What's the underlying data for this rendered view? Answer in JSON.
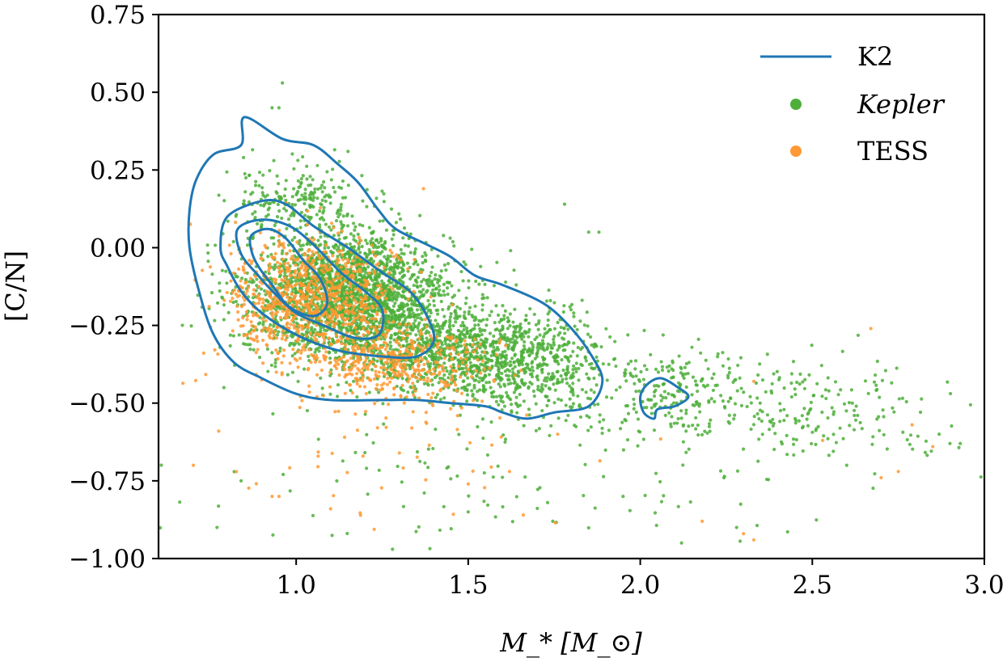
{
  "chart_data": {
    "type": "scatter",
    "xlabel": "M_* [M_⊙]",
    "ylabel": "[C/N]",
    "xlim": [
      0.6,
      3.0
    ],
    "ylim": [
      -1.0,
      0.75
    ],
    "x_ticks": [
      1.0,
      1.5,
      2.0,
      2.5,
      3.0
    ],
    "x_tick_labels": [
      "1.0",
      "1.5",
      "2.0",
      "2.5",
      "3.0"
    ],
    "y_ticks": [
      0.75,
      0.5,
      0.25,
      0.0,
      -0.25,
      -0.5,
      -0.75,
      -1.0
    ],
    "y_tick_labels": [
      "0.75",
      "0.50",
      "0.25",
      "0.00",
      "−0.25",
      "−0.50",
      "−0.75",
      "−1.00"
    ],
    "grid": false,
    "legend_position": "top-right",
    "series": [
      {
        "name": "K2",
        "kind": "density-contours",
        "color": "#1f77b4",
        "contours": [
          [
            [
              0.85,
              0.42
            ],
            [
              0.96,
              0.35
            ],
            [
              1.05,
              0.33
            ],
            [
              1.12,
              0.27
            ],
            [
              1.18,
              0.21
            ],
            [
              1.24,
              0.12
            ],
            [
              1.29,
              0.06
            ],
            [
              1.38,
              0.01
            ],
            [
              1.45,
              -0.03
            ],
            [
              1.52,
              -0.09
            ],
            [
              1.6,
              -0.12
            ],
            [
              1.72,
              -0.18
            ],
            [
              1.8,
              -0.26
            ],
            [
              1.86,
              -0.35
            ],
            [
              1.89,
              -0.43
            ],
            [
              1.85,
              -0.51
            ],
            [
              1.75,
              -0.53
            ],
            [
              1.67,
              -0.55
            ],
            [
              1.6,
              -0.53
            ],
            [
              1.55,
              -0.51
            ],
            [
              1.45,
              -0.5
            ],
            [
              1.35,
              -0.49
            ],
            [
              1.25,
              -0.49
            ],
            [
              1.1,
              -0.49
            ],
            [
              1.0,
              -0.47
            ],
            [
              0.9,
              -0.42
            ],
            [
              0.82,
              -0.37
            ],
            [
              0.76,
              -0.28
            ],
            [
              0.72,
              -0.15
            ],
            [
              0.69,
              0.0
            ],
            [
              0.69,
              0.12
            ],
            [
              0.71,
              0.22
            ],
            [
              0.76,
              0.3
            ],
            [
              0.84,
              0.33
            ],
            [
              0.85,
              0.42
            ]
          ],
          [
            [
              0.8,
              0.1
            ],
            [
              0.9,
              0.15
            ],
            [
              0.97,
              0.14
            ],
            [
              1.05,
              0.07
            ],
            [
              1.15,
              0.0
            ],
            [
              1.25,
              -0.08
            ],
            [
              1.33,
              -0.14
            ],
            [
              1.38,
              -0.22
            ],
            [
              1.4,
              -0.3
            ],
            [
              1.35,
              -0.35
            ],
            [
              1.25,
              -0.35
            ],
            [
              1.12,
              -0.33
            ],
            [
              1.0,
              -0.28
            ],
            [
              0.9,
              -0.21
            ],
            [
              0.84,
              -0.14
            ],
            [
              0.8,
              -0.06
            ],
            [
              0.78,
              0.0
            ],
            [
              0.8,
              0.1
            ]
          ],
          [
            [
              0.83,
              0.06
            ],
            [
              0.9,
              0.09
            ],
            [
              0.98,
              0.07
            ],
            [
              1.05,
              0.01
            ],
            [
              1.13,
              -0.08
            ],
            [
              1.2,
              -0.14
            ],
            [
              1.25,
              -0.2
            ],
            [
              1.24,
              -0.28
            ],
            [
              1.17,
              -0.29
            ],
            [
              1.08,
              -0.25
            ],
            [
              1.0,
              -0.21
            ],
            [
              0.94,
              -0.15
            ],
            [
              0.89,
              -0.09
            ],
            [
              0.84,
              -0.02
            ],
            [
              0.83,
              0.06
            ]
          ],
          [
            [
              0.87,
              0.04
            ],
            [
              0.92,
              0.06
            ],
            [
              0.97,
              0.03
            ],
            [
              1.02,
              -0.04
            ],
            [
              1.07,
              -0.1
            ],
            [
              1.09,
              -0.18
            ],
            [
              1.05,
              -0.22
            ],
            [
              0.98,
              -0.19
            ],
            [
              0.93,
              -0.12
            ],
            [
              0.89,
              -0.06
            ],
            [
              0.87,
              -0.01
            ],
            [
              0.87,
              0.04
            ]
          ],
          [
            [
              2.02,
              -0.44
            ],
            [
              2.06,
              -0.42
            ],
            [
              2.11,
              -0.45
            ],
            [
              2.14,
              -0.48
            ],
            [
              2.1,
              -0.51
            ],
            [
              2.05,
              -0.52
            ],
            [
              2.04,
              -0.55
            ],
            [
              2.01,
              -0.53
            ],
            [
              2.0,
              -0.48
            ],
            [
              2.02,
              -0.44
            ]
          ]
        ]
      },
      {
        "name": "Kepler",
        "kind": "scatter",
        "color": "#4daf3a",
        "clusters": [
          {
            "cx": 1.15,
            "cy": -0.15,
            "sx": 0.15,
            "sy": 0.1,
            "n": 2200
          },
          {
            "cx": 1.45,
            "cy": -0.33,
            "sx": 0.15,
            "sy": 0.07,
            "n": 900
          },
          {
            "cx": 1.7,
            "cy": -0.38,
            "sx": 0.12,
            "sy": 0.08,
            "n": 450
          },
          {
            "cx": 2.1,
            "cy": -0.46,
            "sx": 0.12,
            "sy": 0.07,
            "n": 220
          },
          {
            "cx": 2.55,
            "cy": -0.52,
            "sx": 0.2,
            "sy": 0.08,
            "n": 180
          },
          {
            "cx": 1.0,
            "cy": 0.15,
            "sx": 0.1,
            "sy": 0.06,
            "n": 220
          },
          {
            "cx": 1.6,
            "cy": -0.75,
            "sx": 0.45,
            "sy": 0.12,
            "n": 120
          }
        ],
        "points": [
          [
            0.96,
            0.53
          ],
          [
            0.93,
            0.45
          ],
          [
            0.95,
            0.45
          ],
          [
            1.78,
            0.14
          ],
          [
            1.85,
            0.05
          ],
          [
            1.88,
            0.05
          ],
          [
            0.77,
            -0.9
          ],
          [
            0.84,
            -0.75
          ],
          [
            1.28,
            -0.97
          ],
          [
            1.5,
            -0.85
          ],
          [
            1.95,
            -0.8
          ],
          [
            2.28,
            -0.9
          ],
          [
            2.45,
            -0.55
          ],
          [
            2.6,
            -0.7
          ],
          [
            2.9,
            -0.63
          ],
          [
            2.93,
            -0.63
          ],
          [
            2.12,
            -0.95
          ],
          [
            0.79,
            -0.45
          ]
        ]
      },
      {
        "name": "TESS",
        "kind": "scatter",
        "color": "#ff9933",
        "clusters": [
          {
            "cx": 1.05,
            "cy": -0.17,
            "sx": 0.12,
            "sy": 0.1,
            "n": 900
          },
          {
            "cx": 1.3,
            "cy": -0.37,
            "sx": 0.12,
            "sy": 0.06,
            "n": 400
          },
          {
            "cx": 1.2,
            "cy": -0.65,
            "sx": 0.3,
            "sy": 0.13,
            "n": 60
          }
        ],
        "points": [
          [
            1.37,
            0.19
          ],
          [
            0.93,
            -0.8
          ],
          [
            0.95,
            -0.8
          ],
          [
            1.1,
            -0.84
          ],
          [
            1.66,
            -0.86
          ],
          [
            2.3,
            -0.92
          ],
          [
            2.33,
            -0.94
          ],
          [
            2.18,
            -0.88
          ],
          [
            2.7,
            -0.74
          ],
          [
            2.75,
            -0.72
          ],
          [
            2.67,
            -0.26
          ],
          [
            2.79,
            -0.57
          ],
          [
            2.85,
            -0.64
          ],
          [
            2.53,
            -0.62
          ],
          [
            1.5,
            -0.76
          ],
          [
            1.62,
            -0.72
          ],
          [
            1.76,
            -0.6
          ],
          [
            2.33,
            -0.43
          ]
        ]
      }
    ]
  }
}
